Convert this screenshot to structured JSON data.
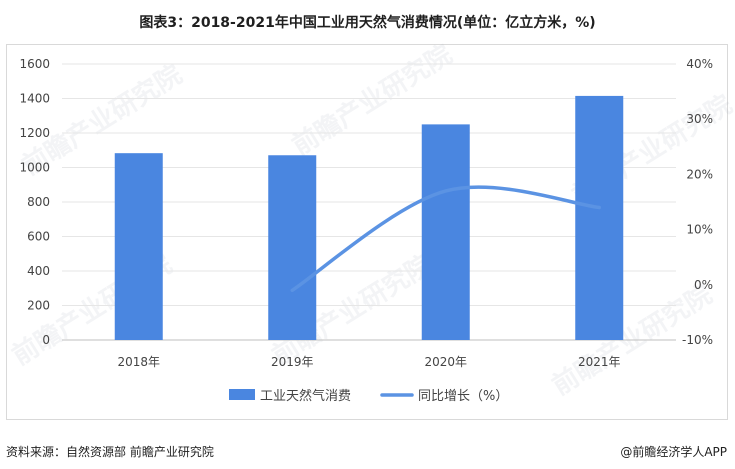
{
  "title": "图表3：2018-2021年中国工业用天然气消费情况(单位：亿立方米，%)",
  "footer": {
    "source": "资料来源：自然资源部 前瞻产业研究院",
    "brand": "@前瞻经济学人APP"
  },
  "watermark": "前瞻产业研究院",
  "colors": {
    "bar": "#4a86e0",
    "line": "#5b93e3",
    "grid": "#e6e6e6",
    "axis_text": "#444444"
  },
  "chart_data": {
    "type": "bar",
    "categories": [
      "2018年",
      "2019年",
      "2020年",
      "2021年"
    ],
    "series": [
      {
        "name": "工业天然气消费",
        "type": "bar",
        "axis": "left",
        "values": [
          1083,
          1071,
          1250,
          1415
        ]
      },
      {
        "name": "同比增长（%）",
        "type": "line",
        "axis": "right",
        "values": [
          null,
          -1,
          17,
          14
        ]
      }
    ],
    "y_left": {
      "min": 0,
      "max": 1600,
      "ticks": [
        0,
        200,
        400,
        600,
        800,
        1000,
        1200,
        1400,
        1600
      ]
    },
    "y_right": {
      "min": -10,
      "max": 40,
      "ticks": [
        "-10%",
        "0%",
        "10%",
        "20%",
        "30%",
        "40%"
      ]
    },
    "grid": true,
    "legend_position": "bottom"
  }
}
